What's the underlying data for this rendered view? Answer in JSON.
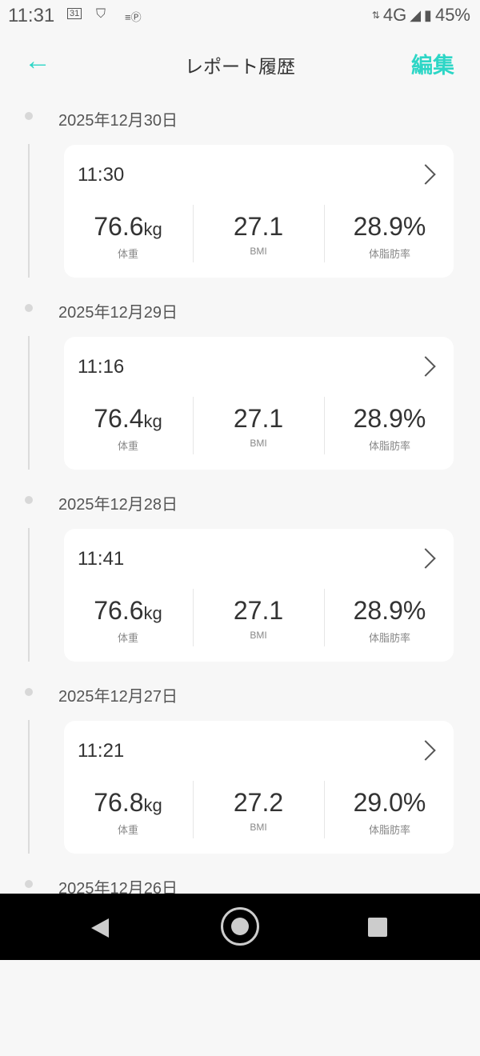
{
  "status_bar": {
    "time": "11:31",
    "network": "4G",
    "battery": "45%",
    "icons": [
      "calendar-icon",
      "shield-icon",
      "parking-icon",
      "signal-icon",
      "battery-icon"
    ],
    "calendar_day": "31"
  },
  "header": {
    "title": "レポート履歴",
    "edit_label": "編集",
    "back_icon": "arrow-left-icon",
    "accent": "#2dd6c6"
  },
  "labels": {
    "weight": "体重",
    "bmi": "BMI",
    "fat": "体脂肪率",
    "kg": "kg"
  },
  "records": [
    {
      "date": "2025年12月30日",
      "time": "11:30",
      "weight": "76.6",
      "bmi": "27.1",
      "fat": "28.9%"
    },
    {
      "date": "2025年12月29日",
      "time": "11:16",
      "weight": "76.4",
      "bmi": "27.1",
      "fat": "28.9%"
    },
    {
      "date": "2025年12月28日",
      "time": "11:41",
      "weight": "76.6",
      "bmi": "27.1",
      "fat": "28.9%"
    },
    {
      "date": "2025年12月27日",
      "time": "11:21",
      "weight": "76.8",
      "bmi": "27.2",
      "fat": "29.0%"
    },
    {
      "date": "2025年12月26日"
    }
  ]
}
